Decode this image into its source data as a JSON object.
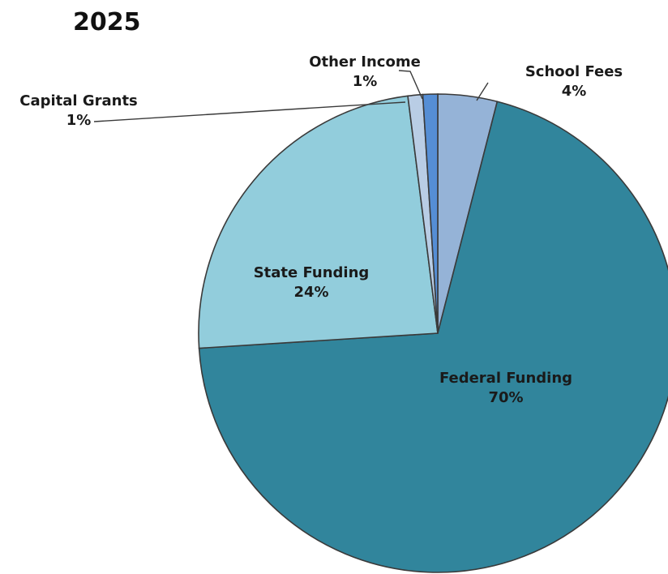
{
  "chart_data": {
    "type": "pie",
    "title": "2025",
    "slices": [
      {
        "label": "School Fees",
        "value": 4,
        "value_label": "4%",
        "color": "#95b3d7"
      },
      {
        "label": "Federal Funding",
        "value": 70,
        "value_label": "70%",
        "color": "#31859c"
      },
      {
        "label": "State Funding",
        "value": 24,
        "value_label": "24%",
        "color": "#92cddc"
      },
      {
        "label": "Capital Grants",
        "value": 1,
        "value_label": "1%",
        "color": "#b9cde5"
      },
      {
        "label": "Other Income",
        "value": 1,
        "value_label": "1%",
        "color": "#558ed5"
      }
    ]
  }
}
